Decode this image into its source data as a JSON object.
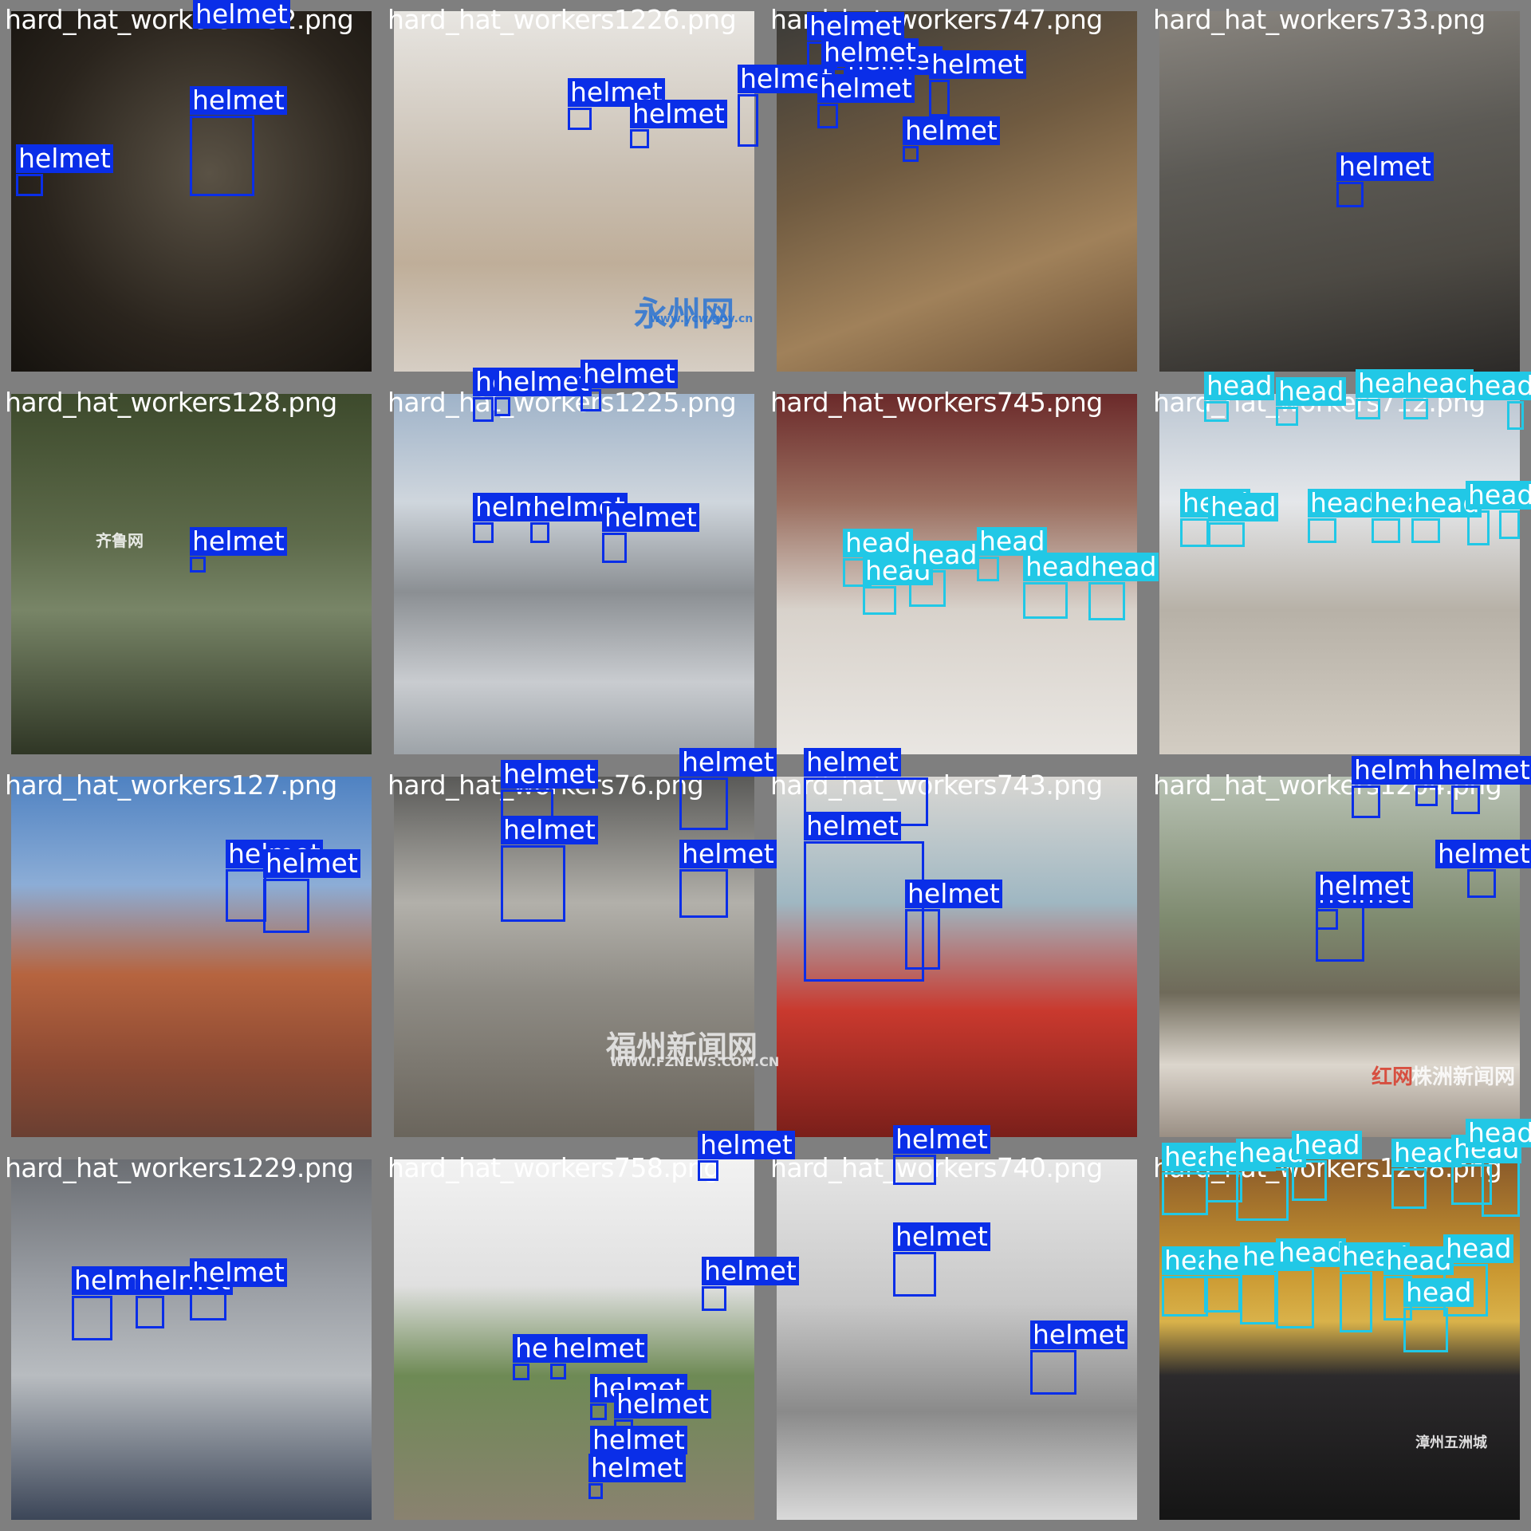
{
  "classes": {
    "helmet": {
      "label": "helmet",
      "color": "#0a2ee8"
    },
    "head": {
      "label": "head",
      "color": "#21c8e6"
    }
  },
  "tiles": [
    {
      "file": "hard_hat_workers1182.png"
    },
    {
      "file": "hard_hat_workers1226.png"
    },
    {
      "file": "hard_hat_workers747.png"
    },
    {
      "file": "hard_hat_workers733.png"
    },
    {
      "file": "hard_hat_workers128.png"
    },
    {
      "file": "hard_hat_workers1225.png"
    },
    {
      "file": "hard_hat_workers745.png"
    },
    {
      "file": "hard_hat_workers712.png"
    },
    {
      "file": "hard_hat_workers127.png"
    },
    {
      "file": "hard_hat_workers76.png"
    },
    {
      "file": "hard_hat_workers743.png"
    },
    {
      "file": "hard_hat_workers1204.png"
    },
    {
      "file": "hard_hat_workers1229.png"
    },
    {
      "file": "hard_hat_workers758.png"
    },
    {
      "file": "hard_hat_workers740.png"
    },
    {
      "file": "hard_hat_workers1208.png"
    }
  ],
  "watermarks": {
    "t1": "永州网",
    "t1b": "www.ycw.gov.cn",
    "t4": "齐鲁网",
    "t9": "福州新闻网",
    "t9b": "WWW.FZNEWS.COM.CN",
    "t11": "株洲新闻网",
    "t11b": "红网",
    "t15": "漳州五洲城"
  }
}
